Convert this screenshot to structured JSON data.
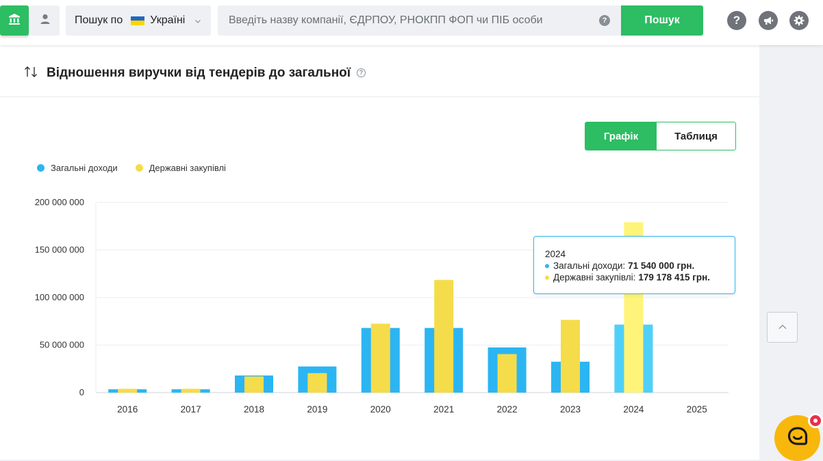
{
  "header": {
    "region_prefix": "Пошук по",
    "region_value": "Україні",
    "search_placeholder": "Введіть назву компанії, ЄДРПОУ, РНОКПП ФОП чи ПІБ особи",
    "search_button": "Пошук"
  },
  "card": {
    "title": "Відношення виручки від тендерів до загальної",
    "tabs": {
      "chart": "Графік",
      "table": "Таблиця"
    }
  },
  "tooltip": {
    "year": "2024",
    "rows": [
      {
        "label": "Загальні доходи:",
        "value": "71 540 000 грн."
      },
      {
        "label": "Державні закупівлі:",
        "value": "179 178 415 грн."
      }
    ]
  },
  "colors": {
    "accent": "#2dbd63",
    "total_income": "#2cb5f3",
    "public_procurement": "#f5dc4a"
  },
  "icons": [
    "bank-icon",
    "user-icon",
    "chevron-down-icon",
    "help-icon",
    "megaphone-icon",
    "gear-icon",
    "sort-arrows-icon",
    "chevron-up-icon",
    "chat-icon"
  ],
  "chart_data": {
    "type": "bar",
    "title": "",
    "xlabel": "",
    "ylabel": "",
    "categories": [
      "2016",
      "2017",
      "2018",
      "2019",
      "2020",
      "2021",
      "2022",
      "2023",
      "2024",
      "2025"
    ],
    "series": [
      {
        "name": "Загальні доходи",
        "color": "#2cb5f3",
        "values": [
          3500000,
          3500000,
          18000000,
          27500000,
          68000000,
          68000000,
          47500000,
          32500000,
          71540000,
          null
        ]
      },
      {
        "name": "Державні закупівлі",
        "color": "#f5dc4a",
        "values": [
          4000000,
          4000000,
          17000000,
          20500000,
          72500000,
          118500000,
          40500000,
          76500000,
          179178415,
          null
        ]
      }
    ],
    "ylim": [
      0,
      200000000
    ],
    "yticks": [
      0,
      50000000,
      100000000,
      150000000,
      200000000
    ],
    "ytick_labels": [
      "0",
      "50 000 000",
      "100 000 000",
      "150 000 000",
      "200 000 000"
    ],
    "grid": true,
    "legend_position": "top-left",
    "highlighted_category": "2024"
  }
}
